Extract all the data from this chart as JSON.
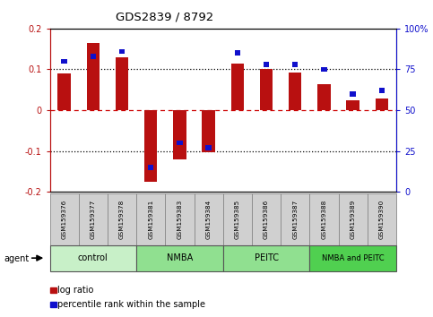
{
  "title": "GDS2839 / 8792",
  "samples": [
    "GSM159376",
    "GSM159377",
    "GSM159378",
    "GSM159381",
    "GSM159383",
    "GSM159384",
    "GSM159385",
    "GSM159386",
    "GSM159387",
    "GSM159388",
    "GSM159389",
    "GSM159390"
  ],
  "log_ratio": [
    0.09,
    0.165,
    0.13,
    -0.175,
    -0.12,
    -0.103,
    0.115,
    0.1,
    0.093,
    0.063,
    0.025,
    0.028
  ],
  "percentile_rank": [
    80,
    83,
    86,
    15,
    30,
    27,
    85,
    78,
    78,
    75,
    60,
    62
  ],
  "groups": [
    {
      "label": "control",
      "start": 0,
      "end": 3,
      "color": "#c8f0c8"
    },
    {
      "label": "NMBA",
      "start": 3,
      "end": 6,
      "color": "#90e090"
    },
    {
      "label": "PEITC",
      "start": 6,
      "end": 9,
      "color": "#90e090"
    },
    {
      "label": "NMBA and PEITC",
      "start": 9,
      "end": 12,
      "color": "#50d050"
    }
  ],
  "bar_color_red": "#b81010",
  "bar_color_blue": "#1010cc",
  "ylim_left": [
    -0.2,
    0.2
  ],
  "ylim_right": [
    0,
    100
  ],
  "yticks_left": [
    -0.2,
    -0.1,
    0.0,
    0.1,
    0.2
  ],
  "ytick_labels_left": [
    "-0.2",
    "-0.1",
    "0",
    "0.1",
    "0.2"
  ],
  "yticks_right": [
    0,
    25,
    50,
    75,
    100
  ],
  "ytick_labels_right": [
    "0",
    "25",
    "50",
    "75",
    "100%"
  ],
  "legend_items": [
    {
      "label": "log ratio",
      "color": "#b81010"
    },
    {
      "label": "percentile rank within the sample",
      "color": "#1010cc"
    }
  ],
  "agent_label": "agent",
  "sample_box_color": "#d0d0d0",
  "sample_box_edge": "#888888"
}
